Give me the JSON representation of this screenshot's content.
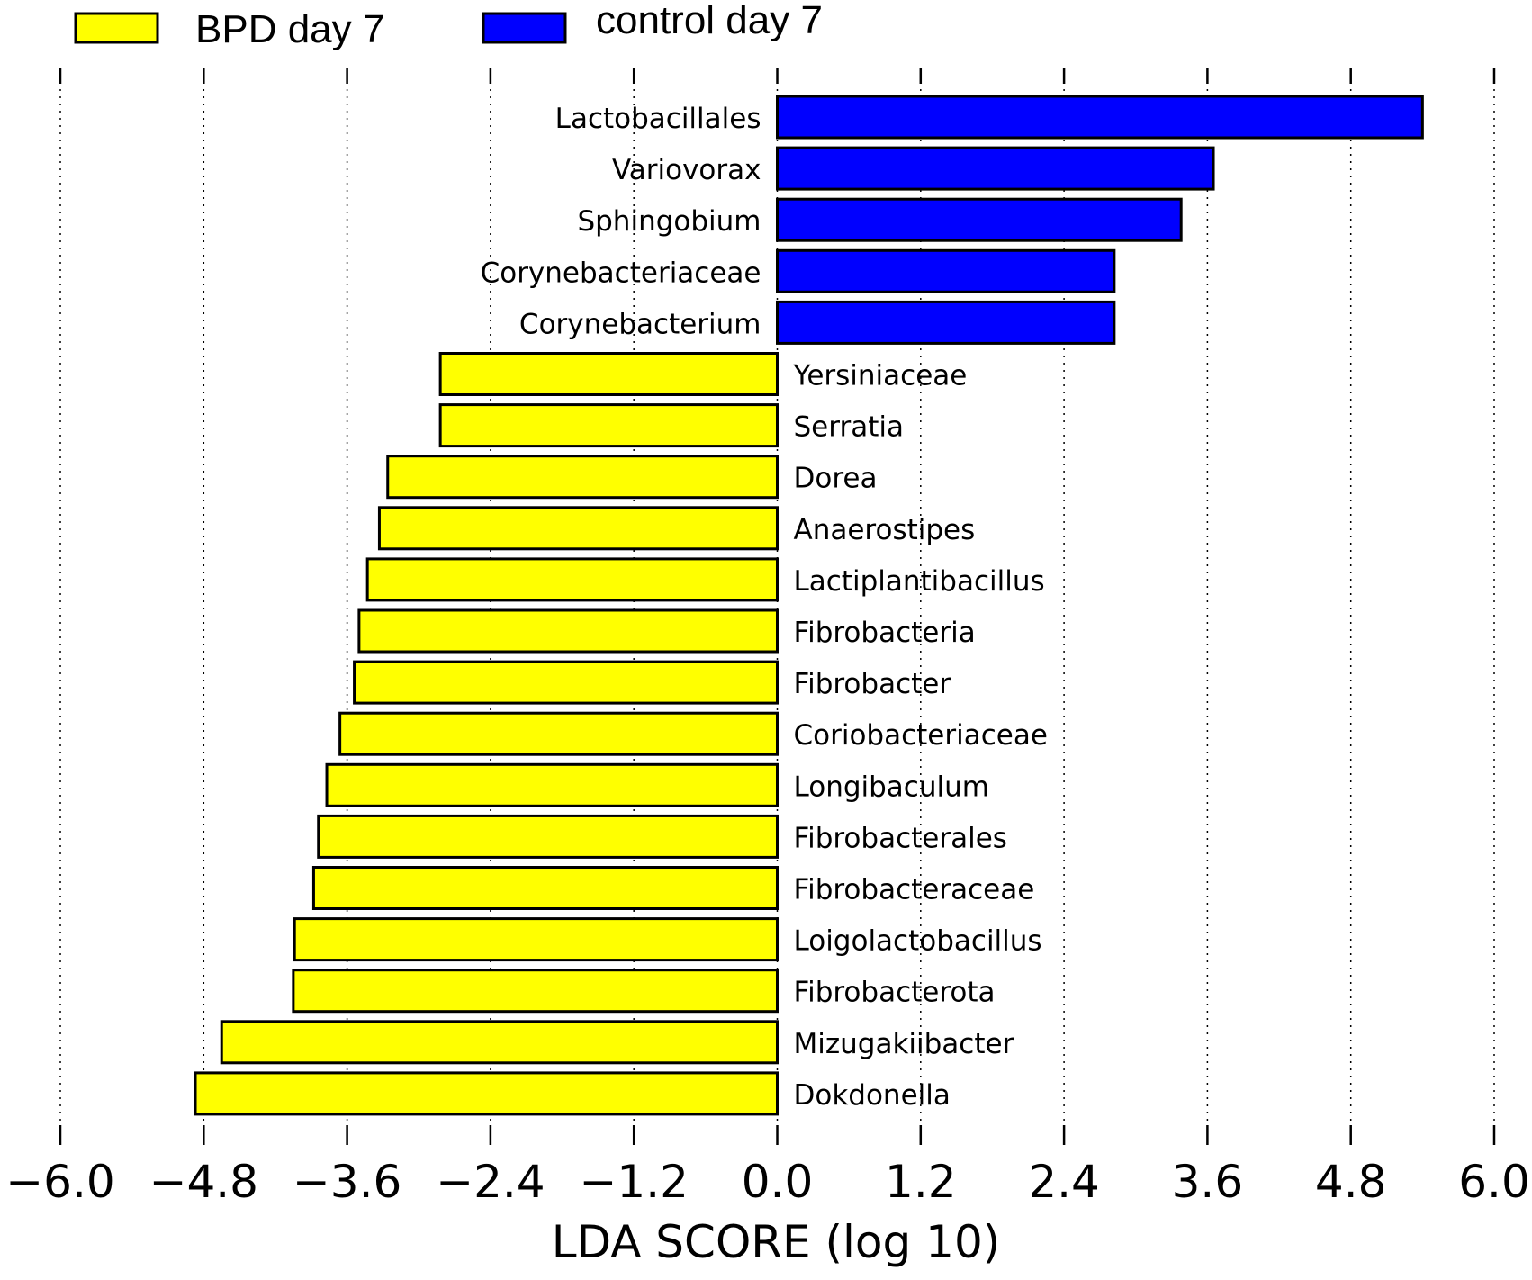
{
  "chart_data": {
    "type": "bar",
    "orientation": "horizontal",
    "title": "",
    "xlabel": "LDA SCORE (log 10)",
    "ylabel": "",
    "xlim": [
      -6.0,
      6.0
    ],
    "xticks": [
      -6.0,
      -4.8,
      -3.6,
      -2.4,
      -1.2,
      0.0,
      1.2,
      2.4,
      3.6,
      4.8,
      6.0
    ],
    "xtick_labels": [
      "−6.0",
      "−4.8",
      "−3.6",
      "−2.4",
      "−1.2",
      "0.0",
      "1.2",
      "2.4",
      "3.6",
      "4.8",
      "6.0"
    ],
    "grid": "vertical dotted at ticks",
    "legend": {
      "placement": "top-left, above plot",
      "entries": [
        {
          "label": "BPD day 7",
          "color": "#ffff00"
        },
        {
          "label": "control day 7",
          "color": "#0000ff"
        }
      ]
    },
    "series": [
      {
        "name": "control day 7",
        "color": "#0000ff",
        "categories": [
          "Lactobacillales",
          "Variovorax",
          "Sphingobium",
          "Corynebacteriaceae",
          "Corynebacterium"
        ],
        "values": [
          5.4,
          3.65,
          3.38,
          2.82,
          2.82
        ]
      },
      {
        "name": "BPD day 7",
        "color": "#ffff00",
        "categories": [
          "Yersiniaceae",
          "Serratia",
          "Dorea",
          "Anaerostipes",
          "Lactiplantibacillus",
          "Fibrobacteria",
          "Fibrobacter",
          "Coriobacteriaceae",
          "Longibaculum",
          "Fibrobacterales",
          "Fibrobacteraceae",
          "Loigolactobacillus",
          "Fibrobacterota",
          "Mizugakiibacter",
          "Dokdonella"
        ],
        "values": [
          -2.82,
          -2.82,
          -3.26,
          -3.33,
          -3.43,
          -3.5,
          -3.54,
          -3.66,
          -3.77,
          -3.84,
          -3.88,
          -4.04,
          -4.05,
          -4.65,
          -4.87
        ]
      }
    ]
  }
}
